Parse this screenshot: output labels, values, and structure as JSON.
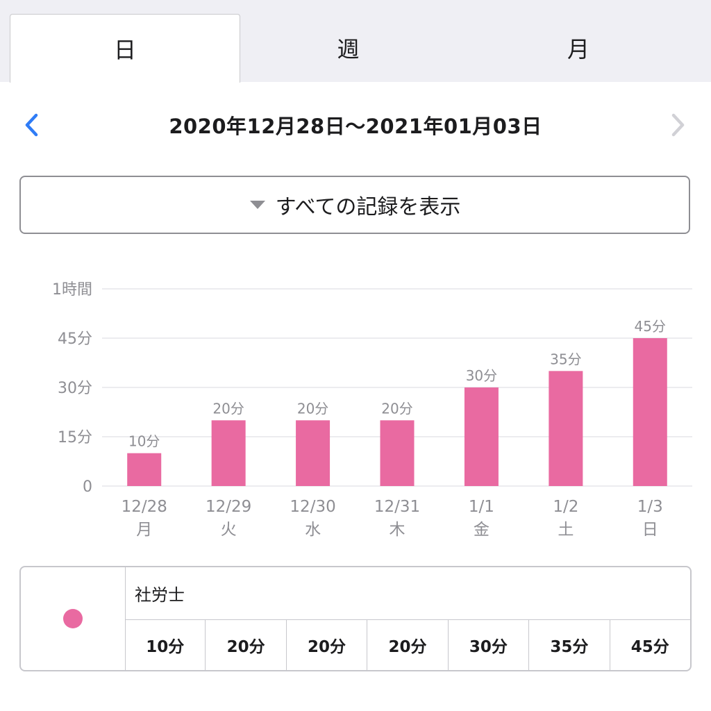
{
  "tabs": [
    {
      "label": "日",
      "active": true
    },
    {
      "label": "週",
      "active": false
    },
    {
      "label": "月",
      "active": false
    }
  ],
  "date_nav": {
    "range": "2020年12月28日〜2021年01月03日",
    "prev_enabled": true,
    "next_enabled": false
  },
  "filter": {
    "label": "すべての記録を表示"
  },
  "colors": {
    "accent": "#e96aa1",
    "link_blue": "#2f7cf6",
    "disabled": "#d1d1d6",
    "grid": "#e5e5ea",
    "muted_text": "#8e8e93"
  },
  "chart_data": {
    "type": "bar",
    "categories": [
      "12/28",
      "12/29",
      "12/30",
      "12/31",
      "1/1",
      "1/2",
      "1/3"
    ],
    "weekdays": [
      "月",
      "火",
      "水",
      "木",
      "金",
      "土",
      "日"
    ],
    "values": [
      10,
      20,
      20,
      20,
      30,
      35,
      45
    ],
    "value_labels": [
      "10分",
      "20分",
      "20分",
      "20分",
      "30分",
      "35分",
      "45分"
    ],
    "y_ticks": [
      0,
      15,
      30,
      45,
      60
    ],
    "y_tick_labels": [
      "0",
      "15分",
      "30分",
      "45分",
      "1時間"
    ],
    "ylim": [
      0,
      60
    ],
    "grid": true,
    "series": [
      {
        "name": "社労士",
        "values": [
          10,
          20,
          20,
          20,
          30,
          35,
          45
        ]
      }
    ]
  },
  "summary": {
    "series_name": "社労士",
    "values": [
      "10分",
      "20分",
      "20分",
      "20分",
      "30分",
      "35分",
      "45分"
    ]
  }
}
